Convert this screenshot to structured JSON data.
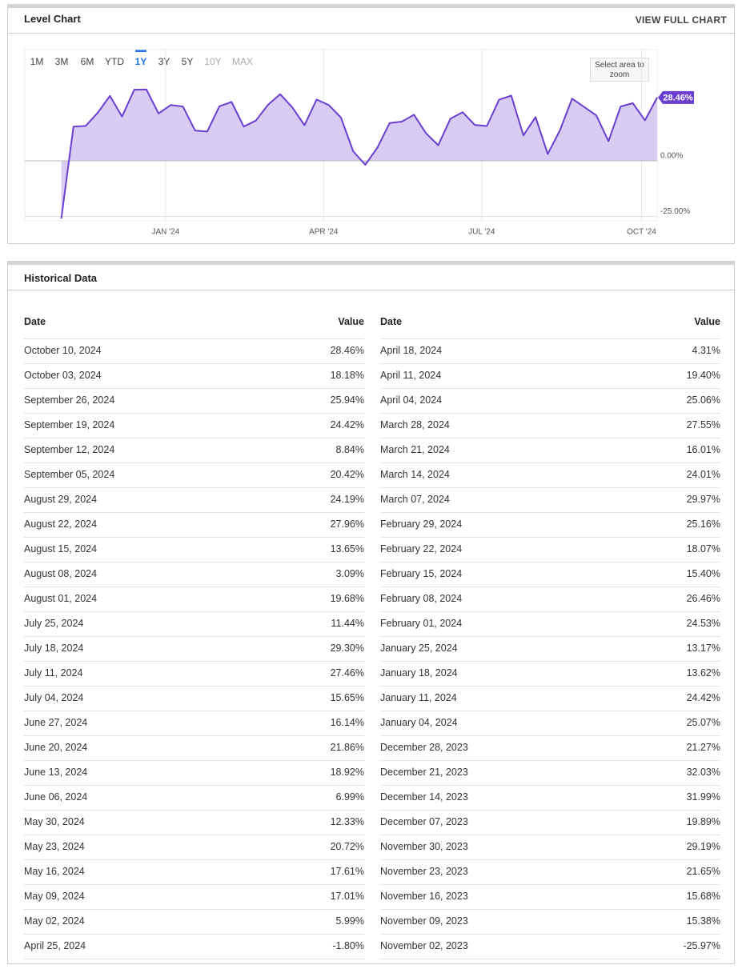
{
  "level_chart": {
    "title": "Level Chart",
    "link": "VIEW FULL CHART",
    "ranges": [
      "1M",
      "3M",
      "6M",
      "YTD",
      "1Y",
      "3Y",
      "5Y",
      "10Y",
      "MAX"
    ],
    "active_range": 4,
    "disabled_ranges": [
      7,
      8
    ],
    "zoom_hint": "Select area to zoom"
  },
  "chart_data": {
    "type": "area",
    "color": "#6a3fd0",
    "fill": "#d8ccf3",
    "x": [
      "November 02, 2023",
      "November 09, 2023",
      "November 16, 2023",
      "November 23, 2023",
      "November 30, 2023",
      "December 07, 2023",
      "December 14, 2023",
      "December 21, 2023",
      "December 28, 2023",
      "January 04, 2024",
      "January 11, 2024",
      "January 18, 2024",
      "January 25, 2024",
      "February 01, 2024",
      "February 08, 2024",
      "February 15, 2024",
      "February 22, 2024",
      "February 29, 2024",
      "March 07, 2024",
      "March 14, 2024",
      "March 21, 2024",
      "March 28, 2024",
      "April 04, 2024",
      "April 11, 2024",
      "April 18, 2024",
      "April 25, 2024",
      "May 02, 2024",
      "May 09, 2024",
      "May 16, 2024",
      "May 23, 2024",
      "May 30, 2024",
      "June 06, 2024",
      "June 13, 2024",
      "June 20, 2024",
      "June 27, 2024",
      "July 04, 2024",
      "July 11, 2024",
      "July 18, 2024",
      "July 25, 2024",
      "August 01, 2024",
      "August 08, 2024",
      "August 15, 2024",
      "August 22, 2024",
      "August 29, 2024",
      "September 05, 2024",
      "September 12, 2024",
      "September 19, 2024",
      "September 26, 2024",
      "October 03, 2024",
      "October 10, 2024"
    ],
    "values": [
      -25.97,
      15.38,
      15.68,
      21.65,
      29.19,
      19.89,
      31.99,
      32.03,
      21.27,
      25.07,
      24.42,
      13.62,
      13.17,
      24.53,
      26.46,
      15.4,
      18.07,
      25.16,
      29.97,
      24.01,
      16.01,
      27.55,
      25.06,
      19.4,
      4.31,
      -1.8,
      5.99,
      17.01,
      17.61,
      20.72,
      12.33,
      6.99,
      18.92,
      21.86,
      16.14,
      15.65,
      27.46,
      29.3,
      11.44,
      19.68,
      3.09,
      13.65,
      27.96,
      24.19,
      20.42,
      8.84,
      24.42,
      25.94,
      18.18,
      28.46
    ],
    "value_labels": [
      "-25.97%",
      "15.38%",
      "15.68%",
      "21.65%",
      "29.19%",
      "19.89%",
      "31.99%",
      "32.03%",
      "21.27%",
      "25.07%",
      "24.42%",
      "13.62%",
      "13.17%",
      "24.53%",
      "26.46%",
      "15.40%",
      "18.07%",
      "25.16%",
      "29.97%",
      "24.01%",
      "16.01%",
      "27.55%",
      "25.06%",
      "19.40%",
      "4.31%",
      "-1.80%",
      "5.99%",
      "17.01%",
      "17.61%",
      "20.72%",
      "12.33%",
      "6.99%",
      "18.92%",
      "21.86%",
      "16.14%",
      "15.65%",
      "27.46%",
      "29.30%",
      "11.44%",
      "19.68%",
      "3.09%",
      "13.65%",
      "27.96%",
      "24.19%",
      "20.42%",
      "8.84%",
      "24.42%",
      "25.94%",
      "18.18%",
      "28.46%"
    ],
    "xlim": [
      "2023-10-12",
      "2024-10-10"
    ],
    "xticks": [
      {
        "value": "2024-01-01",
        "label": "JAN '24"
      },
      {
        "value": "2024-04-01",
        "label": "APR '24"
      },
      {
        "value": "2024-07-01",
        "label": "JUL '24"
      },
      {
        "value": "2024-10-01",
        "label": "OCT '24"
      }
    ],
    "ylim": [
      -27,
      50
    ],
    "yticks": [
      {
        "value": 0,
        "label": "0.00%"
      },
      {
        "value": -25,
        "label": "-25.00%"
      }
    ],
    "grid": true
  },
  "historical_data": {
    "title": "Historical Data",
    "columns": [
      "Date",
      "Value"
    ]
  }
}
